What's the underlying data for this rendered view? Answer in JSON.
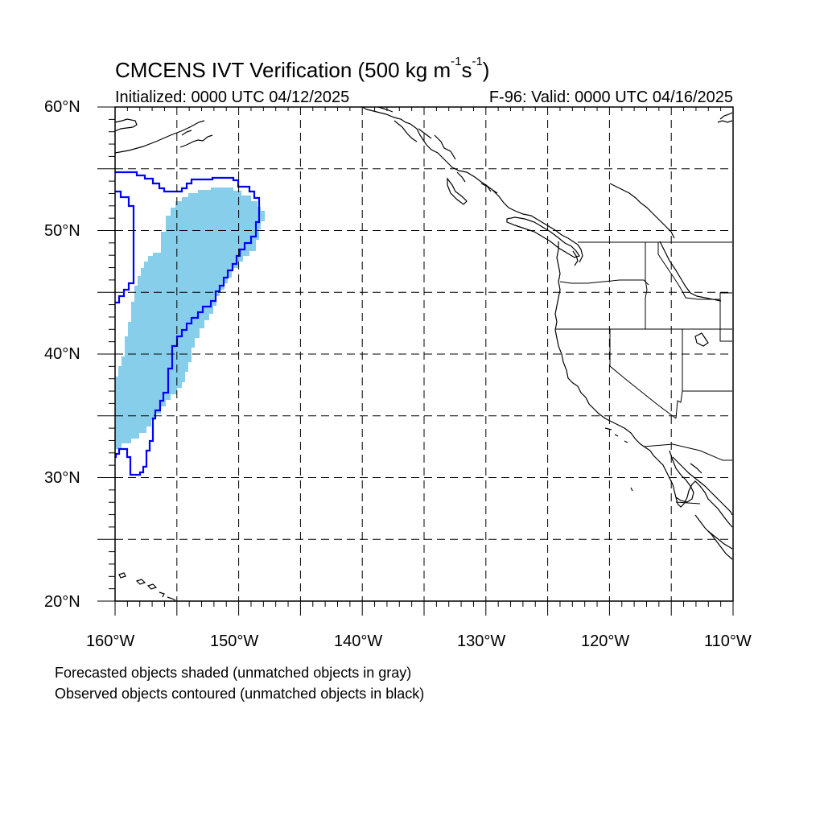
{
  "title": {
    "main": "CMCENS IVT Verification (500 kg m",
    "exp1": "-1",
    "mid": "s",
    "exp2": "-1",
    "close": ")"
  },
  "subtitle": {
    "initialized": "Initialized: 0000 UTC 04/12/2025",
    "valid": "F-96: Valid: 0000 UTC 04/16/2025"
  },
  "map": {
    "lon_range": [
      -160,
      -110
    ],
    "lat_range": [
      20,
      60
    ],
    "grid_lon_step": 5,
    "grid_lat_step": 5,
    "lat_labels": [
      "60°N",
      "50°N",
      "40°N",
      "30°N",
      "20°N"
    ],
    "lon_labels": [
      "160°W",
      "150°W",
      "140°W",
      "130°W",
      "120°W",
      "110°W"
    ],
    "forecast_fill_color": "#87ceeb",
    "observed_contour_color": "#0000ff"
  },
  "captions": {
    "line1": "Forecasted objects shaded (unmatched objects in gray)",
    "line2": "Observed objects contoured (unmatched objects in black)"
  }
}
